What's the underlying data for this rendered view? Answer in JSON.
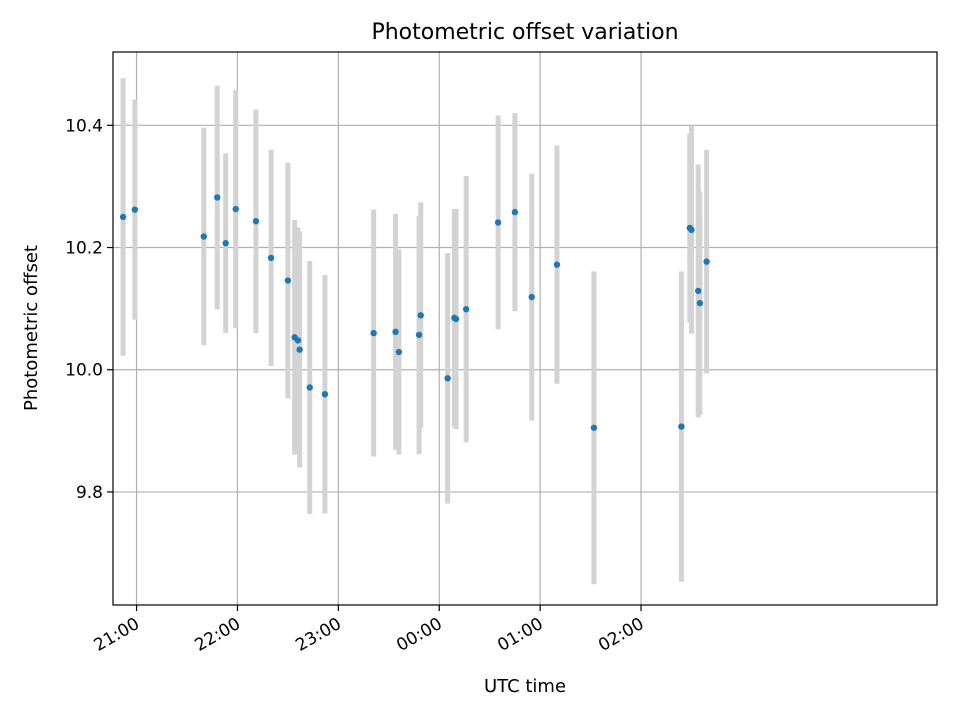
{
  "chart_data": {
    "type": "scatter",
    "title": "Photometric offset variation",
    "xlabel": "UTC time",
    "ylabel": "Photometric offset",
    "x_axis_kind": "time",
    "x_reference_date": "",
    "xlim": [
      "20:46",
      "28:56"
    ],
    "ylim": [
      9.615,
      10.52
    ],
    "xticks": [
      {
        "value": "21:00",
        "label": "21:00"
      },
      {
        "value": "22:00",
        "label": "22:00"
      },
      {
        "value": "23:00",
        "label": "23:00"
      },
      {
        "value": "24:00",
        "label": "00:00"
      },
      {
        "value": "25:00",
        "label": "01:00"
      },
      {
        "value": "26:00",
        "label": "02:00"
      }
    ],
    "yticks": [
      9.8,
      10.0,
      10.2,
      10.4
    ],
    "ytick_labels": [
      "9.8",
      "10.0",
      "10.2",
      "10.4"
    ],
    "grid": true,
    "marker_color": "#1f77b4",
    "errorbar_color": "#d3d3d3",
    "series": [
      {
        "points": [
          {
            "x": "20:52",
            "y": 10.25,
            "err": 0.227
          },
          {
            "x": "20:59",
            "y": 10.262,
            "err": 0.18
          },
          {
            "x": "21:40",
            "y": 10.218,
            "err": 0.178
          },
          {
            "x": "21:48",
            "y": 10.282,
            "err": 0.183
          },
          {
            "x": "21:53",
            "y": 10.207,
            "err": 0.147
          },
          {
            "x": "21:59",
            "y": 10.263,
            "err": 0.195
          },
          {
            "x": "22:11",
            "y": 10.243,
            "err": 0.183
          },
          {
            "x": "22:20",
            "y": 10.183,
            "err": 0.177
          },
          {
            "x": "22:30",
            "y": 10.146,
            "err": 0.193
          },
          {
            "x": "22:34",
            "y": 10.053,
            "err": 0.192
          },
          {
            "x": "22:36",
            "y": 10.048,
            "err": 0.185
          },
          {
            "x": "22:37",
            "y": 10.033,
            "err": 0.193
          },
          {
            "x": "22:43",
            "y": 9.971,
            "err": 0.207
          },
          {
            "x": "22:52",
            "y": 9.96,
            "err": 0.195
          },
          {
            "x": "23:21",
            "y": 10.06,
            "err": 0.202
          },
          {
            "x": "23:34",
            "y": 10.062,
            "err": 0.193
          },
          {
            "x": "23:36",
            "y": 10.029,
            "err": 0.168
          },
          {
            "x": "23:48",
            "y": 10.057,
            "err": 0.195
          },
          {
            "x": "23:49",
            "y": 10.089,
            "err": 0.185
          },
          {
            "x": "24:05",
            "y": 9.986,
            "err": 0.205
          },
          {
            "x": "24:09",
            "y": 10.085,
            "err": 0.178
          },
          {
            "x": "24:10",
            "y": 10.083,
            "err": 0.18
          },
          {
            "x": "24:16",
            "y": 10.099,
            "err": 0.218
          },
          {
            "x": "24:35",
            "y": 10.241,
            "err": 0.175
          },
          {
            "x": "24:45",
            "y": 10.258,
            "err": 0.162
          },
          {
            "x": "24:55",
            "y": 10.119,
            "err": 0.202
          },
          {
            "x": "25:10",
            "y": 10.172,
            "err": 0.195
          },
          {
            "x": "25:32",
            "y": 9.905,
            "err": 0.256
          },
          {
            "x": "26:24",
            "y": 9.907,
            "err": 0.254
          },
          {
            "x": "26:29",
            "y": 10.232,
            "err": 0.155
          },
          {
            "x": "26:30",
            "y": 10.229,
            "err": 0.17
          },
          {
            "x": "26:34",
            "y": 10.129,
            "err": 0.207
          },
          {
            "x": "26:35",
            "y": 10.109,
            "err": 0.183
          },
          {
            "x": "26:39",
            "y": 10.177,
            "err": 0.183
          }
        ]
      }
    ]
  }
}
